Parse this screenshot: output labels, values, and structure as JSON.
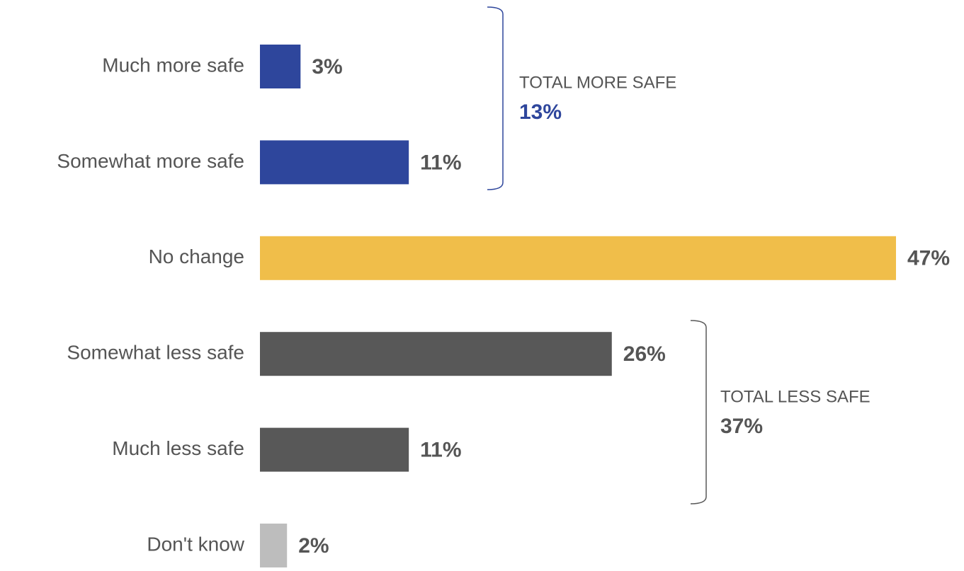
{
  "chart_data": {
    "type": "bar",
    "orientation": "horizontal",
    "categories": [
      "Much more safe",
      "Somewhat more safe",
      "No change",
      "Somewhat less safe",
      "Much less safe",
      "Don't know"
    ],
    "values": [
      3,
      11,
      47,
      26,
      11,
      2
    ],
    "value_labels": [
      "3%",
      "11%",
      "47%",
      "26%",
      "11%",
      "2%"
    ],
    "colors": [
      "#2e469c",
      "#2e469c",
      "#f0be4a",
      "#585858",
      "#585858",
      "#bdbdbd"
    ],
    "annotations": [
      {
        "text": "TOTAL MORE SAFE",
        "total": "13%",
        "color": "#2e469c"
      },
      {
        "text": "TOTAL LESS SAFE",
        "total": "37%",
        "color": "#555555"
      }
    ]
  }
}
